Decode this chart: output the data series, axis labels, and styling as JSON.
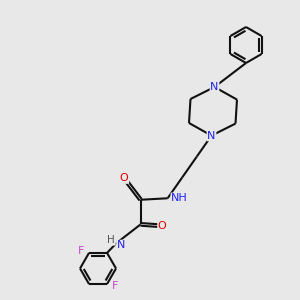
{
  "background_color": "#e8e8e8",
  "bond_color": "#111111",
  "bond_lw": 1.5,
  "N_color": "#2020ee",
  "O_color": "#dd0000",
  "F_color": "#cc44cc",
  "H_color": "#555555",
  "font_size": 8.0,
  "fig_size": [
    3.0,
    3.0
  ],
  "dpi": 100,
  "xlim": [
    -1.0,
    9.0
  ],
  "ylim": [
    -1.0,
    9.0
  ]
}
